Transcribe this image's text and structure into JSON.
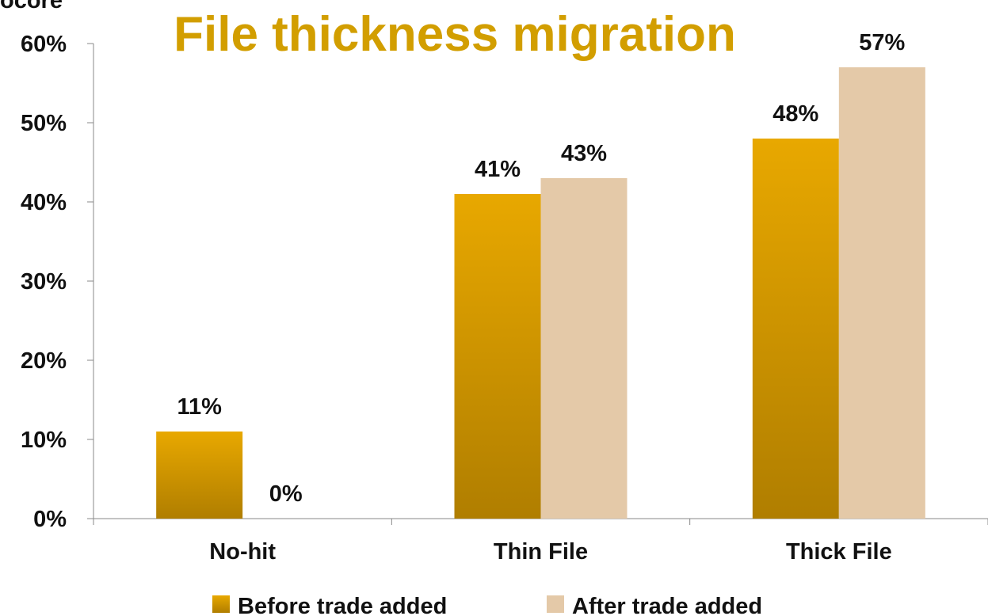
{
  "top_fragment": "ocore",
  "chart_data": {
    "type": "bar",
    "title": "File thickness migration",
    "categories": [
      "No-hit",
      "Thin File",
      "Thick File"
    ],
    "series": [
      {
        "name": "Before trade added",
        "values": [
          11,
          41,
          48
        ],
        "labels": [
          "11%",
          "41%",
          "48%"
        ],
        "color": "#DDA000"
      },
      {
        "name": "After trade added",
        "values": [
          0,
          43,
          57
        ],
        "labels": [
          "0%",
          "43%",
          "57%"
        ],
        "color": "#E4C9A8"
      }
    ],
    "yticks": [
      "0%",
      "10%",
      "20%",
      "30%",
      "40%",
      "50%",
      "60%"
    ],
    "ylim": [
      0,
      60
    ],
    "grid": false,
    "legend": "bottom"
  }
}
